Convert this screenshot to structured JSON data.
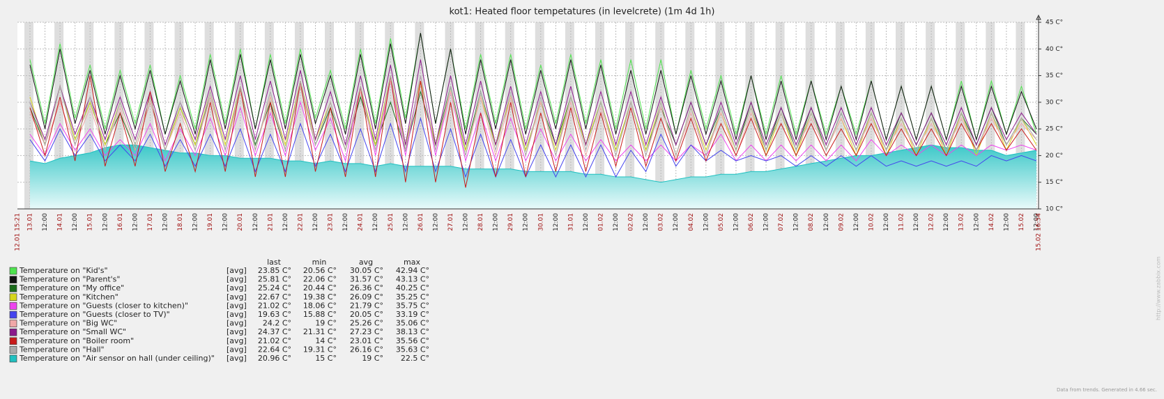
{
  "chart_data": {
    "type": "line",
    "title": "kot1: Heated floor tempetatures (in levelcrete) (1m 4d 1h)",
    "x_start_label": "12.01 15:21",
    "x_end_label": "15.02 16:54",
    "categories": [
      "13.01",
      "12:00",
      "14.01",
      "12:00",
      "15.01",
      "12:00",
      "16.01",
      "12:00",
      "17.01",
      "12:00",
      "18.01",
      "12:00",
      "19.01",
      "12:00",
      "20.01",
      "12:00",
      "21.01",
      "12:00",
      "22.01",
      "12:00",
      "23.01",
      "12:00",
      "24.01",
      "12:00",
      "25.01",
      "12:00",
      "26.01",
      "12:00",
      "27.01",
      "12:00",
      "28.01",
      "12:00",
      "29.01",
      "12:00",
      "30.01",
      "12:00",
      "31.01",
      "12:00",
      "01.02",
      "12:00",
      "02.02",
      "12:00",
      "03.02",
      "12:00",
      "04.02",
      "12:00",
      "05.02",
      "12:00",
      "06.02",
      "12:00",
      "07.02",
      "12:00",
      "08.02",
      "12:00",
      "09.02",
      "12:00",
      "10.02",
      "12:00",
      "11.02",
      "12:00",
      "12.02",
      "12:00",
      "13.02",
      "12:00",
      "14.02",
      "12:00",
      "15.02",
      "12:00"
    ],
    "ylim": [
      10,
      45
    ],
    "yticks": [
      {
        "value": 10,
        "label": "10 C°"
      },
      {
        "value": 15,
        "label": "15 C°"
      },
      {
        "value": 20,
        "label": "20 C°"
      },
      {
        "value": 25,
        "label": "25 C°"
      },
      {
        "value": 30,
        "label": "30 C°"
      },
      {
        "value": 35,
        "label": "35 C°"
      },
      {
        "value": 40,
        "label": "40 C°"
      },
      {
        "value": 45,
        "label": "45 C°"
      }
    ],
    "grid": true,
    "legend_columns": [
      "last",
      "min",
      "avg",
      "max"
    ],
    "series": [
      {
        "name": "Temperature on \"Kid's\"",
        "color": "#4ee44e",
        "function": "[avg]",
        "stats": [
          "23.85 C°",
          "20.56 C°",
          "30.05 C°",
          "42.94 C°"
        ],
        "values": [
          38,
          26,
          41,
          27,
          37,
          25,
          36,
          26,
          37,
          24,
          35,
          25,
          39,
          26,
          40,
          25,
          39,
          26,
          40,
          27,
          36,
          25,
          40,
          26,
          42,
          27,
          43,
          26,
          40,
          25,
          39,
          26,
          39,
          25,
          37,
          26,
          39,
          26,
          38,
          25,
          38,
          25,
          38,
          24,
          36,
          25,
          35,
          24,
          35,
          24,
          35,
          24,
          34,
          24,
          33,
          24,
          34,
          23,
          33,
          23,
          33,
          23,
          34,
          23,
          34,
          24,
          33,
          24
        ]
      },
      {
        "name": "Temperature on \"Parent's\"",
        "color": "#111111",
        "function": "[avg]",
        "stats": [
          "25.81 C°",
          "22.06 C°",
          "31.57 C°",
          "43.13 C°"
        ],
        "values": [
          37,
          25,
          40,
          26,
          36,
          24,
          35,
          25,
          36,
          24,
          34,
          24,
          38,
          25,
          39,
          25,
          38,
          25,
          39,
          26,
          35,
          24,
          39,
          25,
          41,
          26,
          43,
          26,
          40,
          24,
          38,
          25,
          38,
          24,
          36,
          25,
          38,
          25,
          37,
          24,
          36,
          24,
          36,
          24,
          35,
          24,
          34,
          23,
          35,
          23,
          34,
          23,
          34,
          23,
          33,
          23,
          34,
          23,
          33,
          23,
          33,
          23,
          33,
          23,
          33,
          24,
          32,
          25
        ]
      },
      {
        "name": "Temperature on \"My office\"",
        "color": "#1a6b1a",
        "function": "[avg]",
        "stats": [
          "25.24 C°",
          "20.44 C°",
          "26.36 C°",
          "40.25 C°"
        ],
        "values": [
          29,
          22,
          33,
          23,
          30,
          22,
          28,
          21,
          30,
          21,
          29,
          22,
          31,
          21,
          32,
          22,
          30,
          21,
          33,
          22,
          29,
          21,
          31,
          22,
          30,
          21,
          32,
          22,
          33,
          21,
          32,
          22,
          31,
          21,
          30,
          22,
          31,
          22,
          30,
          21,
          30,
          21,
          29,
          22,
          30,
          22,
          29,
          21,
          30,
          21,
          29,
          21,
          29,
          21,
          28,
          21,
          28,
          21,
          28,
          22,
          28,
          21,
          28,
          22,
          29,
          22,
          27,
          24
        ]
      },
      {
        "name": "Temperature on \"Kitchen\"",
        "color": "#d6d61c",
        "function": "[avg]",
        "stats": [
          "22.67 C°",
          "19.38 C°",
          "26.09 C°",
          "35.25 C°"
        ],
        "values": [
          31,
          22,
          33,
          23,
          30,
          22,
          30,
          22,
          31,
          21,
          29,
          22,
          32,
          22,
          33,
          21,
          31,
          22,
          34,
          23,
          30,
          21,
          33,
          22,
          35,
          22,
          34,
          22,
          32,
          21,
          31,
          22,
          31,
          21,
          30,
          21,
          31,
          22,
          30,
          21,
          30,
          21,
          30,
          20,
          29,
          21,
          28,
          21,
          29,
          20,
          28,
          20,
          28,
          21,
          27,
          20,
          28,
          20,
          27,
          20,
          27,
          20,
          28,
          20,
          28,
          21,
          27,
          22
        ]
      },
      {
        "name": "Temperature on \"Guests (closer to kitchen)\"",
        "color": "#ee44ee",
        "function": "[avg]",
        "stats": [
          "21.02 C°",
          "18.06 C°",
          "21.79 C°",
          "35.75 C°"
        ],
        "values": [
          24,
          20,
          26,
          21,
          25,
          20,
          23,
          20,
          26,
          19,
          25,
          20,
          27,
          20,
          29,
          20,
          28,
          20,
          30,
          21,
          27,
          19,
          33,
          20,
          34,
          20,
          35,
          20,
          32,
          19,
          28,
          19,
          27,
          19,
          25,
          19,
          24,
          19,
          23,
          19,
          22,
          19,
          22,
          19,
          22,
          20,
          24,
          19,
          22,
          19,
          22,
          19,
          22,
          19,
          22,
          19,
          23,
          20,
          22,
          20,
          22,
          20,
          22,
          20,
          22,
          21,
          22,
          21
        ]
      },
      {
        "name": "Temperature on \"Guests (closer to TV)\"",
        "color": "#4444ee",
        "function": "[avg]",
        "stats": [
          "19.63 C°",
          "15.88 C°",
          "20.05 C°",
          "33.19 C°"
        ],
        "values": [
          23,
          19,
          25,
          20,
          24,
          19,
          22,
          19,
          24,
          18,
          23,
          18,
          24,
          18,
          25,
          17,
          24,
          17,
          26,
          18,
          24,
          17,
          25,
          17,
          26,
          17,
          27,
          17,
          25,
          16,
          24,
          16,
          23,
          16,
          22,
          16,
          22,
          16,
          22,
          16,
          21,
          17,
          24,
          18,
          22,
          19,
          21,
          19,
          20,
          19,
          20,
          18,
          20,
          18,
          20,
          18,
          20,
          18,
          19,
          18,
          19,
          18,
          19,
          18,
          20,
          19,
          20,
          19
        ]
      },
      {
        "name": "Temperature on \"Big WC\"",
        "color": "#f0a8a8",
        "function": "[avg]",
        "stats": [
          "24.2 C°",
          "19 C°",
          "25.26 C°",
          "35.06 C°"
        ],
        "values": [
          28,
          22,
          30,
          22,
          29,
          21,
          29,
          21,
          30,
          21,
          28,
          21,
          31,
          21,
          32,
          21,
          31,
          21,
          33,
          22,
          30,
          21,
          32,
          21,
          34,
          21,
          35,
          21,
          32,
          20,
          31,
          20,
          31,
          20,
          30,
          20,
          30,
          20,
          29,
          20,
          30,
          20,
          29,
          20,
          28,
          20,
          28,
          20,
          28,
          21,
          28,
          21,
          27,
          21,
          27,
          21,
          27,
          21,
          26,
          21,
          26,
          21,
          27,
          21,
          27,
          22,
          26,
          23
        ]
      },
      {
        "name": "Temperature on \"Small WC\"",
        "color": "#8b1a8b",
        "function": "[avg]",
        "stats": [
          "24.37 C°",
          "21.31 C°",
          "27.23 C°",
          "38.13 C°"
        ],
        "values": [
          30,
          23,
          33,
          24,
          31,
          23,
          31,
          23,
          32,
          22,
          30,
          23,
          33,
          23,
          35,
          23,
          34,
          23,
          36,
          23,
          32,
          22,
          35,
          23,
          37,
          22,
          38,
          22,
          35,
          22,
          34,
          22,
          33,
          22,
          32,
          22,
          33,
          22,
          32,
          22,
          32,
          22,
          31,
          22,
          30,
          22,
          30,
          22,
          30,
          22,
          29,
          22,
          29,
          22,
          29,
          22,
          29,
          22,
          28,
          22,
          28,
          22,
          29,
          22,
          29,
          23,
          28,
          24
        ]
      },
      {
        "name": "Temperature on \"Boiler room\"",
        "color": "#c81a1a",
        "function": "[avg]",
        "stats": [
          "21.02 C°",
          "14 C°",
          "23.01 C°",
          "35.56 C°"
        ],
        "values": [
          29,
          20,
          31,
          19,
          35,
          18,
          28,
          18,
          32,
          17,
          26,
          17,
          30,
          17,
          33,
          16,
          30,
          16,
          34,
          17,
          29,
          16,
          33,
          16,
          35,
          15,
          34,
          15,
          30,
          14,
          28,
          16,
          30,
          16,
          28,
          17,
          29,
          17,
          28,
          18,
          29,
          18,
          27,
          19,
          27,
          19,
          26,
          20,
          27,
          20,
          26,
          20,
          26,
          20,
          25,
          20,
          26,
          20,
          25,
          20,
          25,
          20,
          26,
          21,
          26,
          21,
          25,
          21
        ]
      },
      {
        "name": "Temperature on \"Hall\"",
        "color": "#aaaaaa",
        "function": "[avg]",
        "stats": [
          "22.64 C°",
          "19.31 C°",
          "26.16 C°",
          "35.63 C°"
        ],
        "values": [
          30,
          22,
          33,
          22,
          31,
          21,
          30,
          22,
          31,
          21,
          30,
          21,
          32,
          21,
          33,
          21,
          32,
          21,
          34,
          22,
          30,
          21,
          33,
          21,
          35,
          21,
          35,
          21,
          33,
          20,
          32,
          21,
          32,
          20,
          31,
          20,
          31,
          21,
          30,
          20,
          30,
          20,
          30,
          20,
          29,
          20,
          29,
          21,
          29,
          21,
          28,
          21,
          28,
          21,
          28,
          21,
          28,
          21,
          27,
          21,
          27,
          21,
          28,
          21,
          28,
          22,
          27,
          23
        ]
      },
      {
        "name": "Temperature on \"Air sensor on hall (under ceiling)\"",
        "color": "#20c0c0",
        "function": "[avg]",
        "fill": true,
        "stats": [
          "20.96 C°",
          "15 C°",
          "19 C°",
          "22.5 C°"
        ],
        "values": [
          19,
          18.5,
          19.5,
          20,
          20.5,
          21.5,
          22,
          22,
          21.5,
          21,
          20.5,
          20.5,
          20,
          20,
          19.5,
          19.5,
          19.5,
          19,
          19,
          18.5,
          19,
          18.5,
          18.5,
          18,
          18.5,
          18,
          18,
          18,
          18,
          17.5,
          17.5,
          17.5,
          17.5,
          17,
          17,
          17,
          17,
          16.5,
          16.5,
          16,
          16,
          15.5,
          15,
          15.5,
          16,
          16,
          16.5,
          16.5,
          17,
          17,
          17.5,
          18,
          18.5,
          19,
          19.5,
          20,
          20,
          20.5,
          21,
          21.5,
          22,
          21.5,
          21.5,
          21,
          21,
          20,
          20.5,
          21
        ]
      }
    ],
    "footer": "Data from trends. Generated in 4.66 sec.",
    "watermark": "http://www.zabbix.com"
  }
}
